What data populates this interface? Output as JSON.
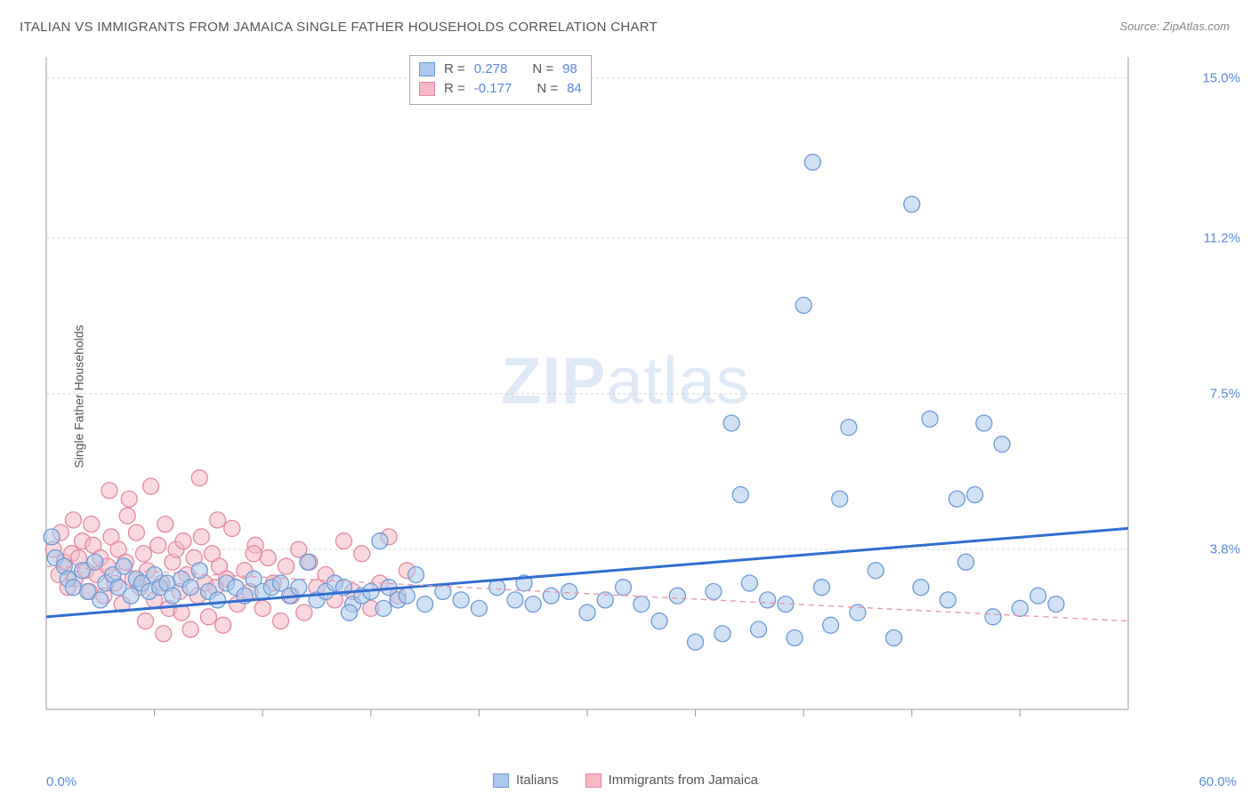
{
  "title": "ITALIAN VS IMMIGRANTS FROM JAMAICA SINGLE FATHER HOUSEHOLDS CORRELATION CHART",
  "source": "Source: ZipAtlas.com",
  "ylabel": "Single Father Households",
  "watermark_bold": "ZIP",
  "watermark_light": "atlas",
  "chart": {
    "type": "scatter",
    "xlim": [
      0,
      60
    ],
    "ylim": [
      0,
      15.5
    ],
    "yticks": [
      3.8,
      7.5,
      11.2,
      15.0
    ],
    "ytick_labels": [
      "3.8%",
      "7.5%",
      "11.2%",
      "15.0%"
    ],
    "xlim_labels": [
      "0.0%",
      "60.0%"
    ],
    "grid_color": "#d8d8d8",
    "axis_color": "#999999",
    "background_color": "#ffffff",
    "marker_radius": 9,
    "marker_stroke_width": 1.3,
    "trend_line_width": 3,
    "series": [
      {
        "name": "Italians",
        "fill": "#aac9ed",
        "stroke": "#6d9ad6",
        "fill_opacity": 0.55,
        "trend_color": "#2f6fd0",
        "trend_dash": "none",
        "trend": {
          "y0": 2.2,
          "y60": 4.3
        },
        "R": "0.278",
        "N": "98",
        "points": [
          [
            0.3,
            4.1
          ],
          [
            0.5,
            3.6
          ],
          [
            1.0,
            3.4
          ],
          [
            1.2,
            3.1
          ],
          [
            1.5,
            2.9
          ],
          [
            2.0,
            3.3
          ],
          [
            2.3,
            2.8
          ],
          [
            2.7,
            3.5
          ],
          [
            3.0,
            2.6
          ],
          [
            3.3,
            3.0
          ],
          [
            3.7,
            3.2
          ],
          [
            4.0,
            2.9
          ],
          [
            4.3,
            3.4
          ],
          [
            4.7,
            2.7
          ],
          [
            5.0,
            3.1
          ],
          [
            5.3,
            3.0
          ],
          [
            5.7,
            2.8
          ],
          [
            6.0,
            3.2
          ],
          [
            6.3,
            2.9
          ],
          [
            6.7,
            3.0
          ],
          [
            7.0,
            2.7
          ],
          [
            7.5,
            3.1
          ],
          [
            8.0,
            2.9
          ],
          [
            8.5,
            3.3
          ],
          [
            9.0,
            2.8
          ],
          [
            9.5,
            2.6
          ],
          [
            10.0,
            3.0
          ],
          [
            10.5,
            2.9
          ],
          [
            11.0,
            2.7
          ],
          [
            11.5,
            3.1
          ],
          [
            12.0,
            2.8
          ],
          [
            12.5,
            2.9
          ],
          [
            13.0,
            3.0
          ],
          [
            13.5,
            2.7
          ],
          [
            14.0,
            2.9
          ],
          [
            14.5,
            3.5
          ],
          [
            15.0,
            2.6
          ],
          [
            15.5,
            2.8
          ],
          [
            16.0,
            3.0
          ],
          [
            16.5,
            2.9
          ],
          [
            17.0,
            2.5
          ],
          [
            17.5,
            2.7
          ],
          [
            18.0,
            2.8
          ],
          [
            18.5,
            4.0
          ],
          [
            19.0,
            2.9
          ],
          [
            19.5,
            2.6
          ],
          [
            20.0,
            2.7
          ],
          [
            21.0,
            2.5
          ],
          [
            22.0,
            2.8
          ],
          [
            23.0,
            2.6
          ],
          [
            24.0,
            2.4
          ],
          [
            25.0,
            2.9
          ],
          [
            26.0,
            2.6
          ],
          [
            27.0,
            2.5
          ],
          [
            28.0,
            2.7
          ],
          [
            29.0,
            2.8
          ],
          [
            30.0,
            2.3
          ],
          [
            31.0,
            2.6
          ],
          [
            32.0,
            2.9
          ],
          [
            33.0,
            2.5
          ],
          [
            34.0,
            2.1
          ],
          [
            35.0,
            2.7
          ],
          [
            36.0,
            1.6
          ],
          [
            37.0,
            2.8
          ],
          [
            38.0,
            6.8
          ],
          [
            38.5,
            5.1
          ],
          [
            39.0,
            3.0
          ],
          [
            40.0,
            2.6
          ],
          [
            41.0,
            2.5
          ],
          [
            42.0,
            9.6
          ],
          [
            42.5,
            13.0
          ],
          [
            43.0,
            2.9
          ],
          [
            44.0,
            5.0
          ],
          [
            44.5,
            6.7
          ],
          [
            45.0,
            2.3
          ],
          [
            46.0,
            3.3
          ],
          [
            47.0,
            1.7
          ],
          [
            48.0,
            12.0
          ],
          [
            48.5,
            2.9
          ],
          [
            49.0,
            6.9
          ],
          [
            50.0,
            2.6
          ],
          [
            50.5,
            5.0
          ],
          [
            51.0,
            3.5
          ],
          [
            51.5,
            5.1
          ],
          [
            52.0,
            6.8
          ],
          [
            52.5,
            2.2
          ],
          [
            53.0,
            6.3
          ],
          [
            54.0,
            2.4
          ],
          [
            55.0,
            2.7
          ],
          [
            56.0,
            2.5
          ],
          [
            37.5,
            1.8
          ],
          [
            39.5,
            1.9
          ],
          [
            41.5,
            1.7
          ],
          [
            43.5,
            2.0
          ],
          [
            26.5,
            3.0
          ],
          [
            20.5,
            3.2
          ],
          [
            18.7,
            2.4
          ],
          [
            16.8,
            2.3
          ]
        ]
      },
      {
        "name": "Immigrants from Jamaica",
        "fill": "#f4b9c4",
        "stroke": "#e488a0",
        "fill_opacity": 0.55,
        "trend_color": "#e797ac",
        "trend_dash": "6 5",
        "trend": {
          "y0": 3.4,
          "y60": 2.1
        },
        "R": "-0.177",
        "N": "84",
        "points": [
          [
            0.4,
            3.8
          ],
          [
            0.7,
            3.2
          ],
          [
            1.0,
            3.5
          ],
          [
            1.2,
            2.9
          ],
          [
            1.4,
            3.7
          ],
          [
            1.6,
            3.1
          ],
          [
            1.8,
            3.6
          ],
          [
            2.0,
            4.0
          ],
          [
            2.2,
            3.3
          ],
          [
            2.4,
            2.8
          ],
          [
            2.6,
            3.9
          ],
          [
            2.8,
            3.2
          ],
          [
            3.0,
            3.6
          ],
          [
            3.2,
            2.7
          ],
          [
            3.4,
            3.4
          ],
          [
            3.6,
            4.1
          ],
          [
            3.8,
            3.0
          ],
          [
            4.0,
            3.8
          ],
          [
            4.2,
            2.5
          ],
          [
            4.4,
            3.5
          ],
          [
            4.6,
            5.0
          ],
          [
            4.8,
            3.1
          ],
          [
            5.0,
            4.2
          ],
          [
            5.2,
            2.9
          ],
          [
            5.4,
            3.7
          ],
          [
            5.6,
            3.3
          ],
          [
            5.8,
            5.3
          ],
          [
            6.0,
            2.6
          ],
          [
            6.2,
            3.9
          ],
          [
            6.4,
            3.0
          ],
          [
            6.6,
            4.4
          ],
          [
            6.8,
            2.4
          ],
          [
            7.0,
            3.5
          ],
          [
            7.2,
            3.8
          ],
          [
            7.4,
            2.8
          ],
          [
            7.6,
            4.0
          ],
          [
            7.8,
            3.2
          ],
          [
            8.0,
            1.9
          ],
          [
            8.2,
            3.6
          ],
          [
            8.4,
            2.7
          ],
          [
            8.6,
            4.1
          ],
          [
            8.8,
            3.0
          ],
          [
            9.0,
            2.2
          ],
          [
            9.2,
            3.7
          ],
          [
            9.4,
            2.9
          ],
          [
            9.6,
            3.4
          ],
          [
            9.8,
            2.0
          ],
          [
            10.0,
            3.1
          ],
          [
            10.3,
            4.3
          ],
          [
            10.6,
            2.5
          ],
          [
            11.0,
            3.3
          ],
          [
            11.3,
            2.8
          ],
          [
            11.6,
            3.9
          ],
          [
            12.0,
            2.4
          ],
          [
            12.3,
            3.6
          ],
          [
            12.6,
            3.0
          ],
          [
            13.0,
            2.1
          ],
          [
            13.3,
            3.4
          ],
          [
            13.6,
            2.7
          ],
          [
            14.0,
            3.8
          ],
          [
            14.3,
            2.3
          ],
          [
            14.6,
            3.5
          ],
          [
            15.0,
            2.9
          ],
          [
            15.5,
            3.2
          ],
          [
            16.0,
            2.6
          ],
          [
            16.5,
            4.0
          ],
          [
            17.0,
            2.8
          ],
          [
            17.5,
            3.7
          ],
          [
            18.0,
            2.4
          ],
          [
            18.5,
            3.0
          ],
          [
            19.0,
            4.1
          ],
          [
            19.5,
            2.7
          ],
          [
            20.0,
            3.3
          ],
          [
            5.5,
            2.1
          ],
          [
            6.5,
            1.8
          ],
          [
            7.5,
            2.3
          ],
          [
            8.5,
            5.5
          ],
          [
            3.5,
            5.2
          ],
          [
            4.5,
            4.6
          ],
          [
            2.5,
            4.4
          ],
          [
            1.5,
            4.5
          ],
          [
            0.8,
            4.2
          ],
          [
            9.5,
            4.5
          ],
          [
            11.5,
            3.7
          ]
        ]
      }
    ]
  },
  "stats_box": {
    "rows": [
      {
        "swatch_fill": "#aac9ed",
        "swatch_stroke": "#6d9ad6",
        "r_label": "R =",
        "r_val": "0.278",
        "n_label": "N =",
        "n_val": "98"
      },
      {
        "swatch_fill": "#f4b9c4",
        "swatch_stroke": "#e488a0",
        "r_label": "R =",
        "r_val": "-0.177",
        "n_label": "N =",
        "n_val": "84"
      }
    ]
  },
  "legend": {
    "items": [
      {
        "fill": "#aac9ed",
        "stroke": "#6d9ad6",
        "label": "Italians"
      },
      {
        "fill": "#f4b9c4",
        "stroke": "#e488a0",
        "label": "Immigrants from Jamaica"
      }
    ]
  }
}
